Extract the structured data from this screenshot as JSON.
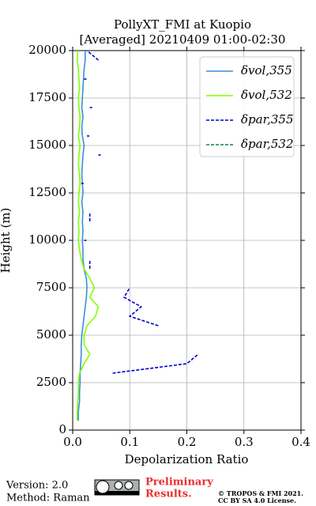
{
  "chart_data": {
    "type": "line",
    "title": "PollyXT_FMI at Kuopio",
    "subtitle": "[Averaged] 20210409 01:00-02:30",
    "xlabel": "Depolarization Ratio",
    "ylabel": "Height (m)",
    "xlim": [
      0,
      0.4
    ],
    "xticks": [
      {
        "value": 0,
        "label": "0.0"
      },
      0.1,
      0.2,
      0.3,
      0.4
    ],
    "ylim": [
      0,
      20000
    ],
    "yticks": [
      0,
      2500,
      5000,
      7500,
      10000,
      12500,
      15000,
      17500,
      20000
    ],
    "grid": true,
    "legend": "upper right",
    "y": [
      0,
      500,
      1000,
      1500,
      2000,
      2500,
      3000,
      3500,
      4000,
      4500,
      5000,
      5500,
      6000,
      6500,
      7000,
      7500,
      8000,
      8500,
      9000,
      9500,
      10000,
      10500,
      11000,
      11500,
      12000,
      12500,
      13000,
      13500,
      14000,
      14500,
      15000,
      15500,
      16000,
      16500,
      17000,
      17500,
      18000,
      18500,
      19000,
      19500,
      20000
    ],
    "series": [
      {
        "name": "δvol,355",
        "color": "#3a8fdb",
        "dash": false,
        "values": [
          null,
          0.01,
          0.01,
          0.012,
          0.012,
          0.013,
          0.013,
          0.014,
          0.015,
          0.015,
          0.016,
          0.018,
          0.02,
          0.022,
          0.024,
          0.025,
          0.024,
          0.02,
          0.018,
          0.018,
          0.017,
          0.018,
          0.017,
          0.018,
          0.016,
          0.018,
          0.017,
          0.016,
          0.017,
          0.018,
          0.02,
          0.017,
          0.016,
          0.018,
          0.016,
          0.017,
          0.018,
          0.019,
          0.02,
          0.022,
          0.022
        ]
      },
      {
        "name": "δvol,532",
        "color": "#80ff00",
        "dash": false,
        "values": [
          null,
          0.008,
          0.008,
          0.009,
          0.01,
          0.01,
          0.012,
          0.02,
          0.03,
          0.02,
          0.02,
          0.025,
          0.04,
          0.045,
          0.03,
          0.038,
          0.03,
          0.02,
          0.015,
          0.012,
          0.01,
          0.011,
          0.01,
          0.012,
          0.01,
          0.011,
          0.013,
          0.012,
          0.01,
          0.011,
          0.013,
          0.01,
          0.012,
          0.013,
          0.011,
          0.01,
          0.012,
          0.011,
          0.01,
          0.008,
          0.009
        ]
      },
      {
        "name": "δpar,355",
        "color": "#0000cc",
        "dash": true,
        "values": [
          null,
          null,
          null,
          null,
          null,
          null,
          0.07,
          0.2,
          0.22,
          null,
          null,
          0.15,
          0.1,
          0.12,
          0.09,
          0.1,
          null,
          0.03,
          0.03,
          null,
          0.02,
          null,
          0.03,
          0.03,
          null,
          null,
          0.015,
          null,
          null,
          0.045,
          null,
          0.025,
          null,
          null,
          0.03,
          null,
          null,
          0.02,
          null,
          0.045,
          0.025
        ]
      },
      {
        "name": "δpar,532",
        "color": "#118844",
        "dash": true,
        "values": [
          null,
          null,
          null,
          null,
          null,
          null,
          null,
          null,
          null,
          null,
          null,
          null,
          null,
          null,
          null,
          null,
          null,
          null,
          null,
          null,
          null,
          null,
          null,
          null,
          null,
          null,
          null,
          null,
          null,
          null,
          null,
          null,
          null,
          null,
          null,
          null,
          null,
          null,
          null,
          null,
          null
        ]
      }
    ]
  },
  "footer": {
    "version": "Version: 2.0",
    "method": "Method: Raman",
    "preliminary": "Preliminary",
    "results": "Results.",
    "copyright": "© TROPOS & FMI 2021.",
    "license": "CC BY SA 4.0 License."
  }
}
